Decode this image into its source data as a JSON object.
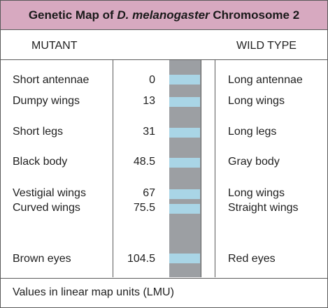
{
  "title": {
    "prefix": "Genetic Map of ",
    "species": "D. melanogaster",
    "suffix": " Chromosome 2"
  },
  "headers": {
    "mutant": "MUTANT",
    "wild_type": "WILD TYPE"
  },
  "rows": [
    {
      "mutant": "Short antennae",
      "position": "0",
      "wild_type": "Long antennae"
    },
    {
      "mutant": "Dumpy wings",
      "position": "13",
      "wild_type": "Long wings"
    },
    {
      "mutant": "Short legs",
      "position": "31",
      "wild_type": "Long legs"
    },
    {
      "mutant": "Black body",
      "position": "48.5",
      "wild_type": "Gray body"
    },
    {
      "mutant": "Vestigial wings",
      "position": "67",
      "wild_type": "Long wings"
    },
    {
      "mutant": "Curved wings",
      "position": "75.5",
      "wild_type": "Straight wings"
    },
    {
      "mutant": "Brown eyes",
      "position": "104.5",
      "wild_type": "Red eyes"
    }
  ],
  "footer": "Values in linear map units (LMU)",
  "colors": {
    "title_background": "#d7a9c0",
    "chromosome": "#9c9fa3",
    "band": "#a9d5e6",
    "border": "#5a5a5a"
  }
}
